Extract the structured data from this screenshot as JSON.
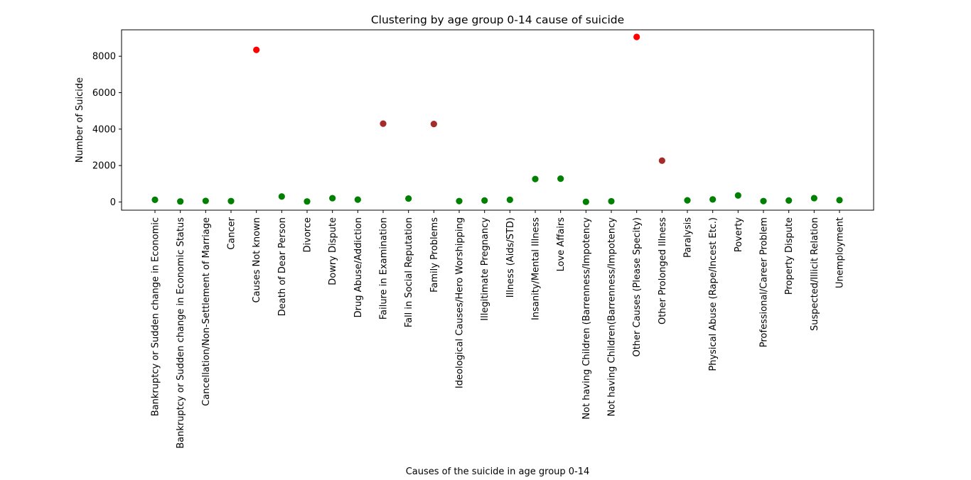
{
  "chart_data": {
    "type": "scatter",
    "title": "Clustering by age group 0-14 cause of  suicide",
    "xlabel": "Causes of the suicide in age group 0-14",
    "ylabel": "Number of Suicide",
    "ylim": [
      -450,
      9450
    ],
    "yticks": [
      0,
      2000,
      4000,
      6000,
      8000
    ],
    "grid": false,
    "legend": "none",
    "cluster_colors": {
      "0": "#008000",
      "1": "#a52a2a",
      "2": "#ff0000"
    },
    "categories": [
      "Bankruptcy or Sudden change in Economic",
      "Bankruptcy or Sudden change in Economic Status",
      "Cancellation/Non-Settlement of Marriage",
      "Cancer",
      "Causes Not known",
      "Death of Dear Person",
      "Divorce",
      "Dowry Dispute",
      "Drug Abuse/Addiction",
      "Failure in Examination",
      "Fall in Social Reputation",
      "Family Problems",
      "Ideological Causes/Hero Worshipping",
      "Illegitimate Pregnancy",
      "Illness (Aids/STD)",
      "Insanity/Mental Illness",
      "Love Affairs",
      "Not having Children (Barrenness/Impotency",
      "Not having Children(Barrenness/Impotency",
      "Other Causes (Please Specity)",
      "Other Prolonged Illness",
      "Paralysis",
      "Physical Abuse (Rape/Incest Etc.)",
      "Poverty",
      "Professional/Career Problem",
      "Property Dispute",
      "Suspected/Illicit Relation",
      "Unemployment"
    ],
    "values": [
      120,
      30,
      60,
      50,
      8350,
      300,
      30,
      210,
      130,
      4300,
      190,
      4280,
      50,
      80,
      120,
      1260,
      1280,
      10,
      40,
      9060,
      2270,
      90,
      140,
      360,
      50,
      80,
      210,
      100
    ],
    "clusters": [
      0,
      0,
      0,
      0,
      2,
      0,
      0,
      0,
      0,
      1,
      0,
      1,
      0,
      0,
      0,
      0,
      0,
      0,
      0,
      2,
      1,
      0,
      0,
      0,
      0,
      0,
      0,
      0
    ]
  }
}
